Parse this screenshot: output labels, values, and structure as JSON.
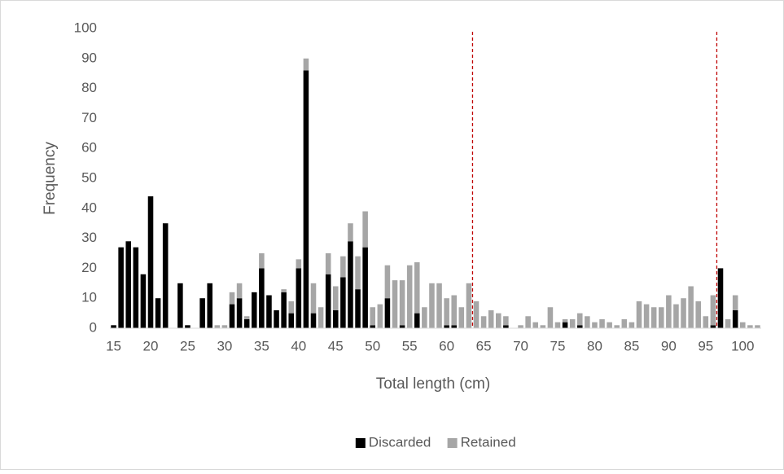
{
  "chart_data": {
    "type": "stacked_bar",
    "x_label": "Total length (cm)",
    "y_label": "Frequency",
    "categories": [
      15,
      null,
      null,
      null,
      null,
      20,
      null,
      null,
      null,
      null,
      25,
      null,
      null,
      null,
      null,
      30,
      null,
      null,
      null,
      null,
      35,
      null,
      null,
      null,
      null,
      40,
      null,
      null,
      null,
      null,
      45,
      null,
      null,
      null,
      null,
      50,
      null,
      null,
      null,
      null,
      55,
      null,
      null,
      null,
      null,
      60,
      null,
      null,
      null,
      null,
      65,
      null,
      null,
      null,
      null,
      70,
      null,
      null,
      null,
      null,
      75,
      null,
      null,
      null,
      null,
      80,
      null,
      null,
      null,
      null,
      85,
      null,
      null,
      null,
      null,
      90,
      null,
      null,
      null,
      null,
      95,
      null,
      null,
      null,
      null,
      100,
      null,
      null
    ],
    "series": [
      {
        "name": "Discarded",
        "color": "#000000",
        "values": [
          1,
          27,
          29,
          27,
          18,
          44,
          10,
          35,
          0,
          15,
          1,
          0,
          10,
          15,
          0,
          0,
          8,
          10,
          3,
          12,
          20,
          11,
          6,
          12,
          5,
          20,
          86,
          5,
          0,
          18,
          6,
          17,
          29,
          13,
          27,
          1,
          0,
          10,
          0,
          1,
          0,
          5,
          0,
          0,
          0,
          1,
          1,
          0,
          0,
          0,
          0,
          0,
          0,
          1,
          0,
          0,
          0,
          0,
          0,
          0,
          0,
          2,
          0,
          1,
          0,
          0,
          0,
          0,
          0,
          0,
          0,
          0,
          0,
          0,
          0,
          0,
          0,
          0,
          0,
          0,
          0,
          1,
          20,
          0,
          6,
          0,
          0,
          0
        ]
      },
      {
        "name": "Retained",
        "color": "#a6a6a6",
        "values": [
          0,
          0,
          0,
          0,
          0,
          0,
          0,
          0,
          0,
          0,
          0,
          0,
          0,
          0,
          1,
          1,
          4,
          5,
          1,
          0,
          5,
          0,
          0,
          1,
          4,
          3,
          4,
          10,
          7,
          7,
          8,
          7,
          6,
          11,
          12,
          6,
          8,
          11,
          16,
          15,
          21,
          17,
          7,
          15,
          15,
          9,
          10,
          7,
          15,
          9,
          4,
          6,
          5,
          3,
          0,
          1,
          4,
          2,
          1,
          7,
          2,
          1,
          3,
          4,
          4,
          2,
          3,
          2,
          1,
          3,
          2,
          9,
          8,
          7,
          7,
          11,
          8,
          10,
          14,
          9,
          4,
          10,
          0,
          3,
          5,
          2,
          1,
          1
        ]
      }
    ],
    "ylim": [
      0,
      100
    ],
    "yticks": [
      0,
      10,
      20,
      30,
      40,
      50,
      60,
      70,
      80,
      90,
      100
    ],
    "grid": false,
    "vlines": {
      "values": [
        63.5,
        96.5
      ],
      "color": "#c00000"
    },
    "legend": "bottom"
  }
}
